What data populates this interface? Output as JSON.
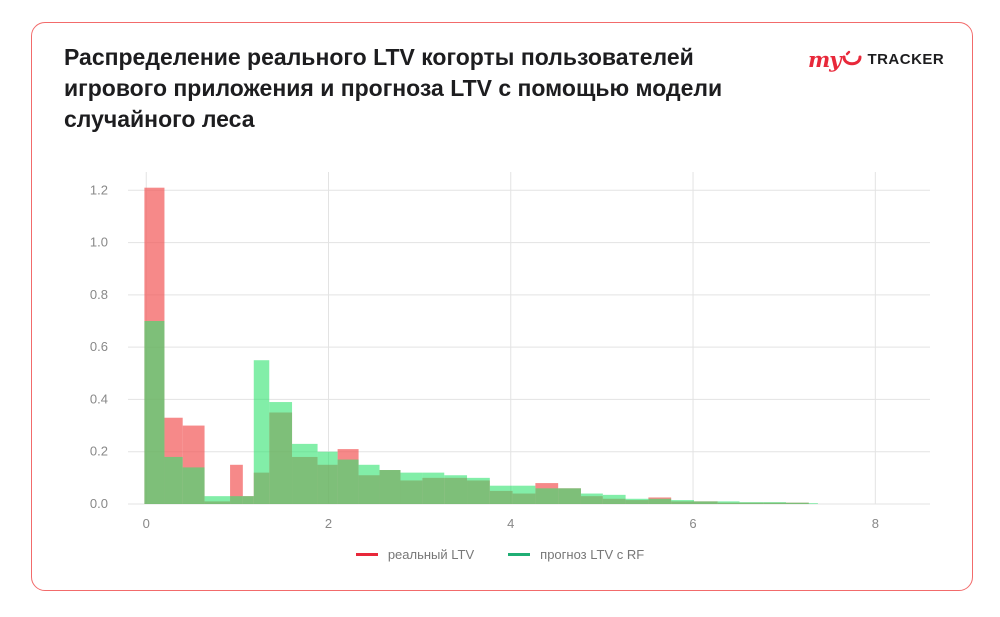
{
  "header": {
    "title": "Распределение реального LTV когорты пользователей игрового приложения и прогноза LTV с помощью модели случайного леса"
  },
  "brand": {
    "prefix": "my",
    "name": "TRACKER",
    "icon": "smile-logo-icon",
    "color": "#e8283a"
  },
  "chart_data": {
    "type": "bar",
    "subtype": "overlapping-histogram",
    "title": "Распределение реального LTV когорты пользователей игрового приложения и прогноза LTV с помощью модели случайного леса",
    "xlabel": "",
    "ylabel": "",
    "xlim": [
      -0.2,
      8.6
    ],
    "ylim": [
      0,
      1.27
    ],
    "xticks": [
      0,
      2,
      4,
      6,
      8
    ],
    "yticks": [
      0.0,
      0.2,
      0.4,
      0.6,
      0.8,
      1.0,
      1.2
    ],
    "xtick_labels": [
      "0",
      "2",
      "4",
      "6",
      "8"
    ],
    "ytick_labels": [
      "0.0",
      "0.2",
      "0.4",
      "0.6",
      "0.8",
      "1.0",
      "1.2"
    ],
    "grid": true,
    "legend_position": "bottom-center",
    "series": [
      {
        "name": "реальный LTV",
        "color": "#f25c5c",
        "opacity": 0.72,
        "bin_edges": [
          -0.02,
          0.2,
          0.4,
          0.64,
          0.92,
          1.06,
          1.18,
          1.35,
          1.6,
          1.88,
          2.1,
          2.33,
          2.56,
          2.79,
          3.03,
          3.27,
          3.52,
          3.77,
          4.02,
          4.27,
          4.52,
          4.77,
          5.01,
          5.26,
          5.51,
          5.76,
          6.01,
          6.27,
          6.51,
          6.77,
          7.02,
          7.27
        ],
        "values": [
          1.21,
          0.33,
          0.3,
          0.01,
          0.15,
          0.03,
          0.12,
          0.35,
          0.18,
          0.15,
          0.21,
          0.11,
          0.13,
          0.09,
          0.1,
          0.1,
          0.09,
          0.05,
          0.04,
          0.08,
          0.06,
          0.03,
          0.02,
          0.015,
          0.025,
          0.01,
          0.01,
          0.005,
          0.005,
          0.005,
          0.005
        ]
      },
      {
        "name": "прогноз LTV с RF",
        "color": "#2ee26e",
        "opacity": 0.6,
        "bin_edges": [
          -0.02,
          0.2,
          0.4,
          0.64,
          0.92,
          1.06,
          1.18,
          1.35,
          1.6,
          1.88,
          2.1,
          2.33,
          2.56,
          2.79,
          3.03,
          3.27,
          3.52,
          3.77,
          4.02,
          4.27,
          4.52,
          4.77,
          5.01,
          5.26,
          5.51,
          5.76,
          6.01,
          6.27,
          6.51,
          6.77,
          7.02,
          7.27,
          7.37
        ],
        "values": [
          0.7,
          0.18,
          0.14,
          0.03,
          0.03,
          0.03,
          0.55,
          0.39,
          0.23,
          0.2,
          0.17,
          0.15,
          0.13,
          0.12,
          0.12,
          0.11,
          0.1,
          0.07,
          0.07,
          0.06,
          0.06,
          0.04,
          0.035,
          0.02,
          0.02,
          0.015,
          0.01,
          0.01,
          0.007,
          0.007,
          0.005,
          0.003
        ]
      }
    ]
  }
}
